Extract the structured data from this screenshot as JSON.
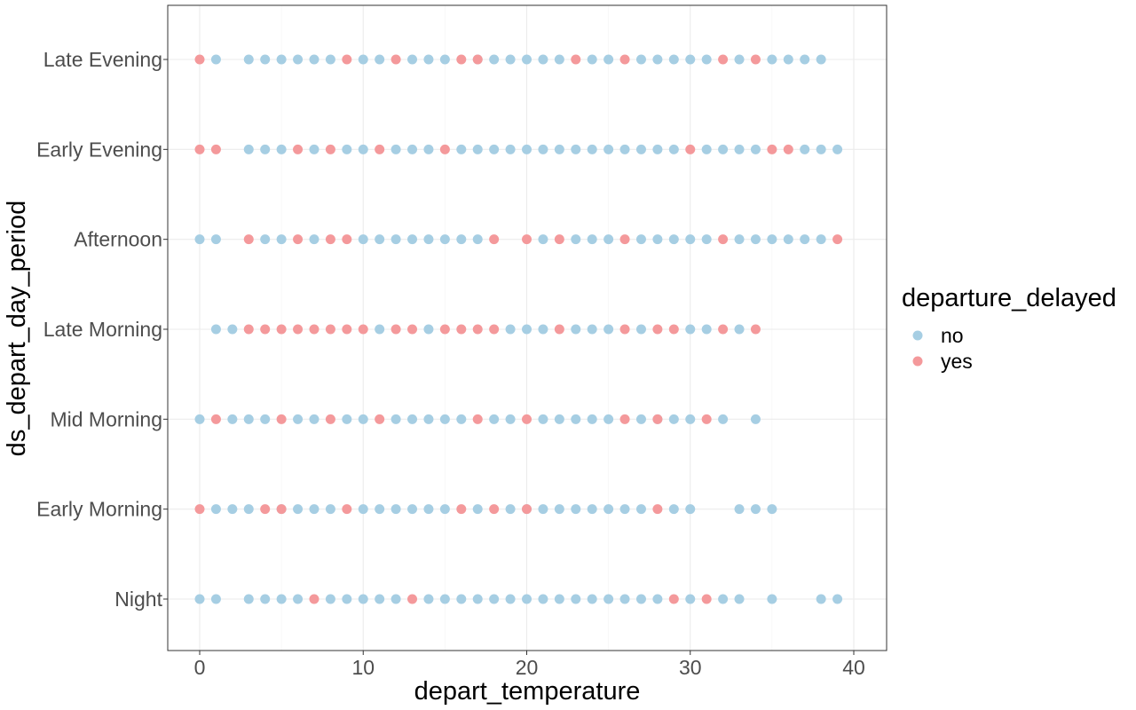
{
  "chart_data": {
    "type": "scatter",
    "title": "",
    "xlabel": "depart_temperature",
    "ylabel": "ds_depart_day_period",
    "xlim": [
      -2,
      42
    ],
    "x_ticks": [
      0,
      10,
      20,
      30,
      40
    ],
    "categories": [
      "Night",
      "Early Morning",
      "Mid Morning",
      "Late Morning",
      "Afternoon",
      "Early Evening",
      "Late Evening"
    ],
    "grid": true,
    "legend": {
      "title": "departure_delayed",
      "placement": "right",
      "entries": [
        {
          "label": "no",
          "color": "#a6cee3"
        },
        {
          "label": "yes",
          "color": "#f4999b"
        }
      ]
    },
    "series": [
      {
        "name": "no",
        "color": "#a6cee3",
        "points": {
          "Night": [
            0,
            1,
            3,
            4,
            5,
            6,
            8,
            9,
            10,
            11,
            12,
            14,
            15,
            16,
            17,
            18,
            19,
            20,
            21,
            22,
            23,
            24,
            25,
            26,
            27,
            28,
            30,
            32,
            33,
            35,
            38,
            39
          ],
          "Early Morning": [
            1,
            2,
            3,
            5,
            6,
            7,
            8,
            10,
            11,
            12,
            13,
            14,
            15,
            17,
            19,
            20,
            21,
            22,
            23,
            24,
            25,
            26,
            27,
            29,
            30,
            33,
            34,
            35
          ],
          "Mid Morning": [
            0,
            2,
            3,
            4,
            6,
            7,
            9,
            10,
            12,
            13,
            14,
            15,
            16,
            18,
            19,
            21,
            22,
            23,
            24,
            25,
            27,
            28,
            29,
            30,
            32,
            34
          ],
          "Late Morning": [
            1,
            2,
            11,
            14,
            19,
            20,
            21,
            23,
            24,
            25,
            27,
            30,
            31,
            33
          ],
          "Afternoon": [
            0,
            1,
            4,
            5,
            7,
            10,
            11,
            12,
            13,
            14,
            15,
            16,
            17,
            21,
            23,
            24,
            25,
            27,
            28,
            29,
            30,
            31,
            33,
            34,
            35,
            36,
            37,
            38
          ],
          "Early Evening": [
            3,
            4,
            5,
            7,
            9,
            10,
            12,
            13,
            14,
            16,
            17,
            18,
            19,
            20,
            21,
            22,
            23,
            24,
            25,
            26,
            27,
            28,
            29,
            31,
            32,
            33,
            34,
            37,
            38,
            39
          ],
          "Late Evening": [
            1,
            3,
            4,
            5,
            6,
            7,
            8,
            10,
            11,
            13,
            14,
            15,
            17,
            18,
            19,
            20,
            21,
            22,
            24,
            25,
            27,
            28,
            29,
            30,
            31,
            33,
            35,
            36,
            37,
            38
          ]
        }
      },
      {
        "name": "yes",
        "color": "#f4999b",
        "points": {
          "Night": [
            7,
            13,
            29,
            31
          ],
          "Early Morning": [
            0,
            4,
            5,
            9,
            16,
            18,
            20,
            28
          ],
          "Mid Morning": [
            1,
            5,
            8,
            11,
            17,
            20,
            26,
            28,
            31
          ],
          "Late Morning": [
            3,
            4,
            5,
            6,
            7,
            8,
            9,
            10,
            12,
            13,
            15,
            16,
            17,
            18,
            22,
            26,
            28,
            29,
            32,
            34
          ],
          "Afternoon": [
            3,
            6,
            8,
            9,
            18,
            20,
            22,
            26,
            32,
            39
          ],
          "Early Evening": [
            0,
            1,
            6,
            8,
            11,
            15,
            30,
            35,
            36
          ],
          "Late Evening": [
            0,
            9,
            12,
            16,
            17,
            23,
            26,
            32,
            34
          ]
        }
      }
    ]
  }
}
